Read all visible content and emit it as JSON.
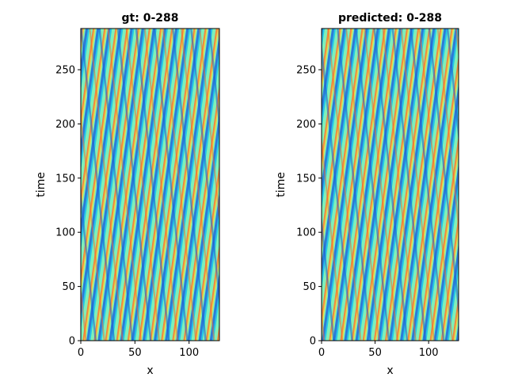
{
  "chart_data": [
    {
      "type": "heatmap",
      "title": "gt: 0-288",
      "xlabel": "x",
      "ylabel": "time",
      "xlim": [
        0,
        128
      ],
      "ylim": [
        0,
        288
      ],
      "xticks": [
        0,
        50,
        100
      ],
      "yticks": [
        0,
        50,
        100,
        150,
        200,
        250
      ],
      "colormap": "jet",
      "grid": false
    },
    {
      "type": "heatmap",
      "title": "predicted: 0-288",
      "xlabel": "x",
      "ylabel": "time",
      "xlim": [
        0,
        128
      ],
      "ylim": [
        0,
        288
      ],
      "xticks": [
        0,
        50,
        100
      ],
      "yticks": [
        0,
        50,
        100,
        150,
        200,
        250
      ],
      "colormap": "jet",
      "grid": false
    }
  ]
}
